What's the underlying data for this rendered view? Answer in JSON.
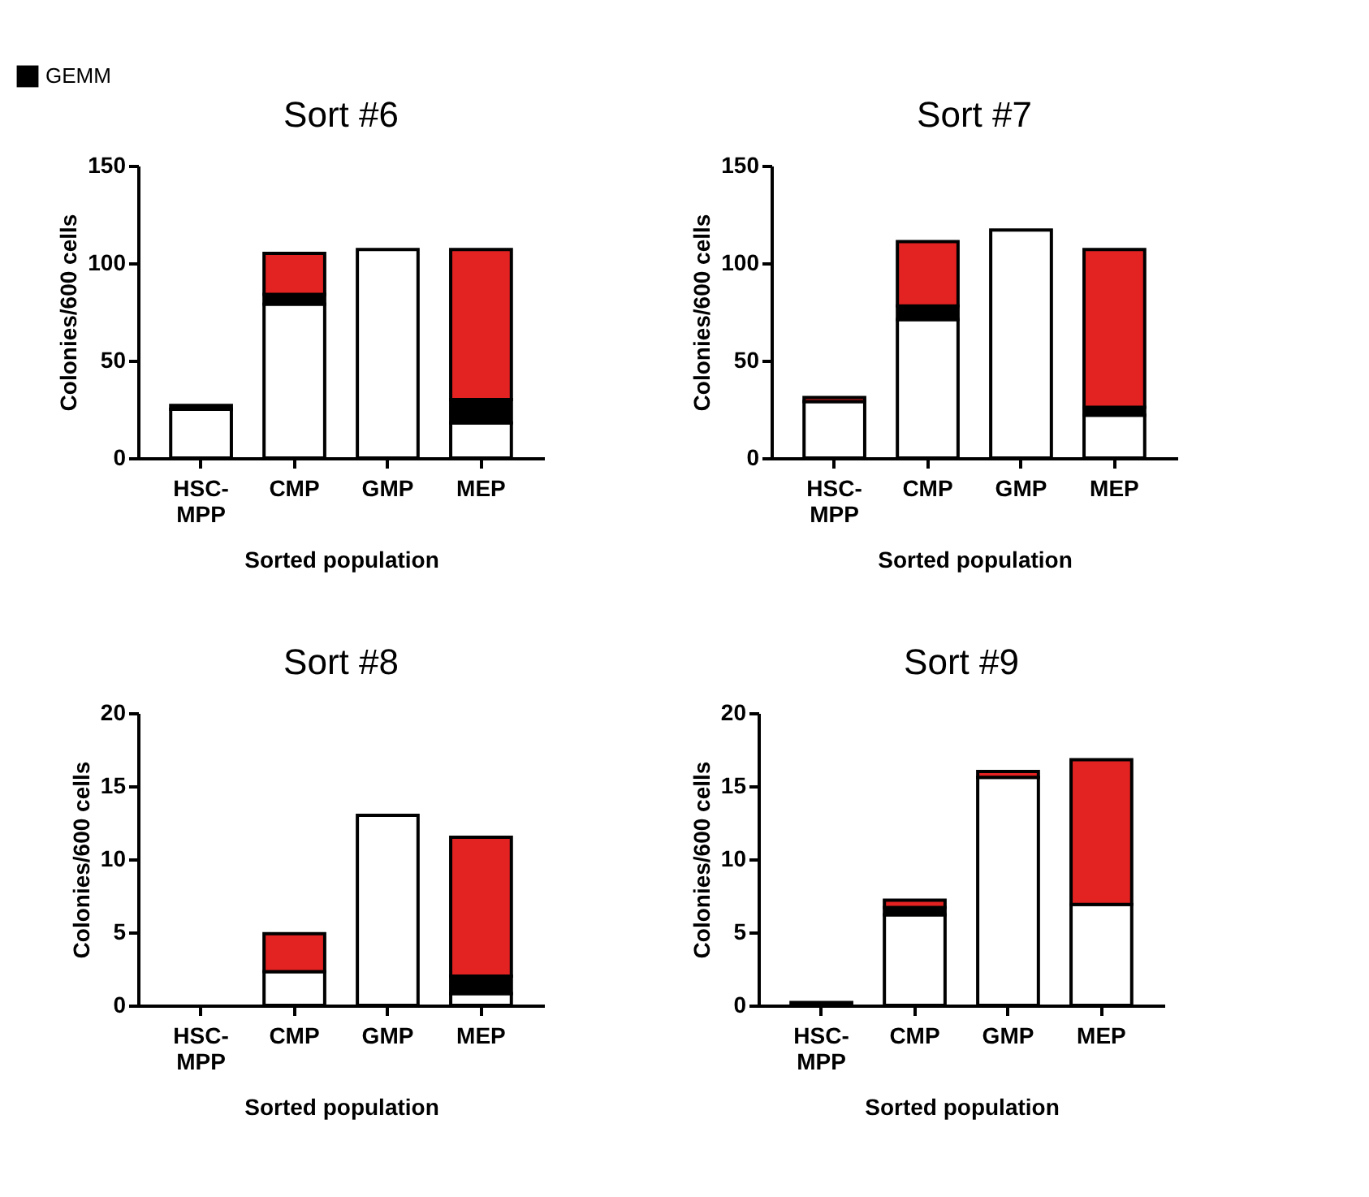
{
  "chart_data": [
    {
      "type": "bar",
      "title": "Sort #6",
      "xlabel": "Sorted population",
      "ylabel": "Colonies/600 cells",
      "categories": [
        "HSC-MPP",
        "CMP",
        "GMP",
        "MEP"
      ],
      "stacked": true,
      "legend": "top left",
      "ylim": [
        0,
        150
      ],
      "yticks": [
        0,
        50,
        100,
        150
      ],
      "grid": false,
      "series": [
        {
          "color": "#ffffff",
          "values": [
            25,
            79,
            107,
            18
          ]
        },
        {
          "name": "GEMM",
          "color": "#000000",
          "values": [
            2,
            5,
            0,
            12
          ]
        },
        {
          "color": "#e32322",
          "values": [
            0,
            21,
            0,
            77
          ]
        }
      ]
    },
    {
      "type": "bar",
      "title": "Sort #7",
      "xlabel": "Sorted population",
      "ylabel": "Colonies/600 cells",
      "categories": [
        "HSC-MPP",
        "CMP",
        "GMP",
        "MEP"
      ],
      "stacked": true,
      "ylim": [
        0,
        150
      ],
      "yticks": [
        0,
        50,
        100,
        150
      ],
      "grid": false,
      "series": [
        {
          "color": "#ffffff",
          "values": [
            29,
            71,
            117,
            22
          ]
        },
        {
          "color": "#000000",
          "values": [
            null,
            7,
            0,
            4
          ]
        },
        {
          "color": "#e32322",
          "values": [
            2,
            33,
            0,
            81
          ]
        }
      ]
    },
    {
      "type": "bar",
      "title": "Sort #8",
      "xlabel": "Sorted population",
      "ylabel": "Colonies/600 cells",
      "categories": [
        "HSC-MPP",
        "CMP",
        "GMP",
        "MEP"
      ],
      "stacked": true,
      "ylim": [
        0,
        20
      ],
      "yticks": [
        0,
        5,
        10,
        15,
        20
      ],
      "grid": false,
      "series": [
        {
          "color": "#ffffff",
          "values": [
            0,
            2.3,
            13,
            0.8
          ]
        },
        {
          "color": "#000000",
          "values": [
            0,
            0,
            0,
            1.2
          ]
        },
        {
          "color": "#e32322",
          "values": [
            0,
            2.6,
            0,
            9.5
          ]
        }
      ]
    },
    {
      "type": "bar",
      "title": "Sort #9",
      "xlabel": "Sorted population",
      "ylabel": "Colonies/600 cells",
      "categories": [
        "HSC-MPP",
        "CMP",
        "GMP",
        "MEP"
      ],
      "stacked": true,
      "ylim": [
        0,
        20
      ],
      "yticks": [
        0,
        5,
        10,
        15,
        20
      ],
      "grid": false,
      "series": [
        {
          "color": "#ffffff",
          "values": [
            0.2,
            6.2,
            15.6,
            6.9
          ]
        },
        {
          "color": "#000000",
          "values": [
            0,
            0.5,
            0,
            0
          ]
        },
        {
          "color": "#e32322",
          "values": [
            0,
            0.5,
            0.4,
            9.9
          ]
        }
      ]
    }
  ]
}
